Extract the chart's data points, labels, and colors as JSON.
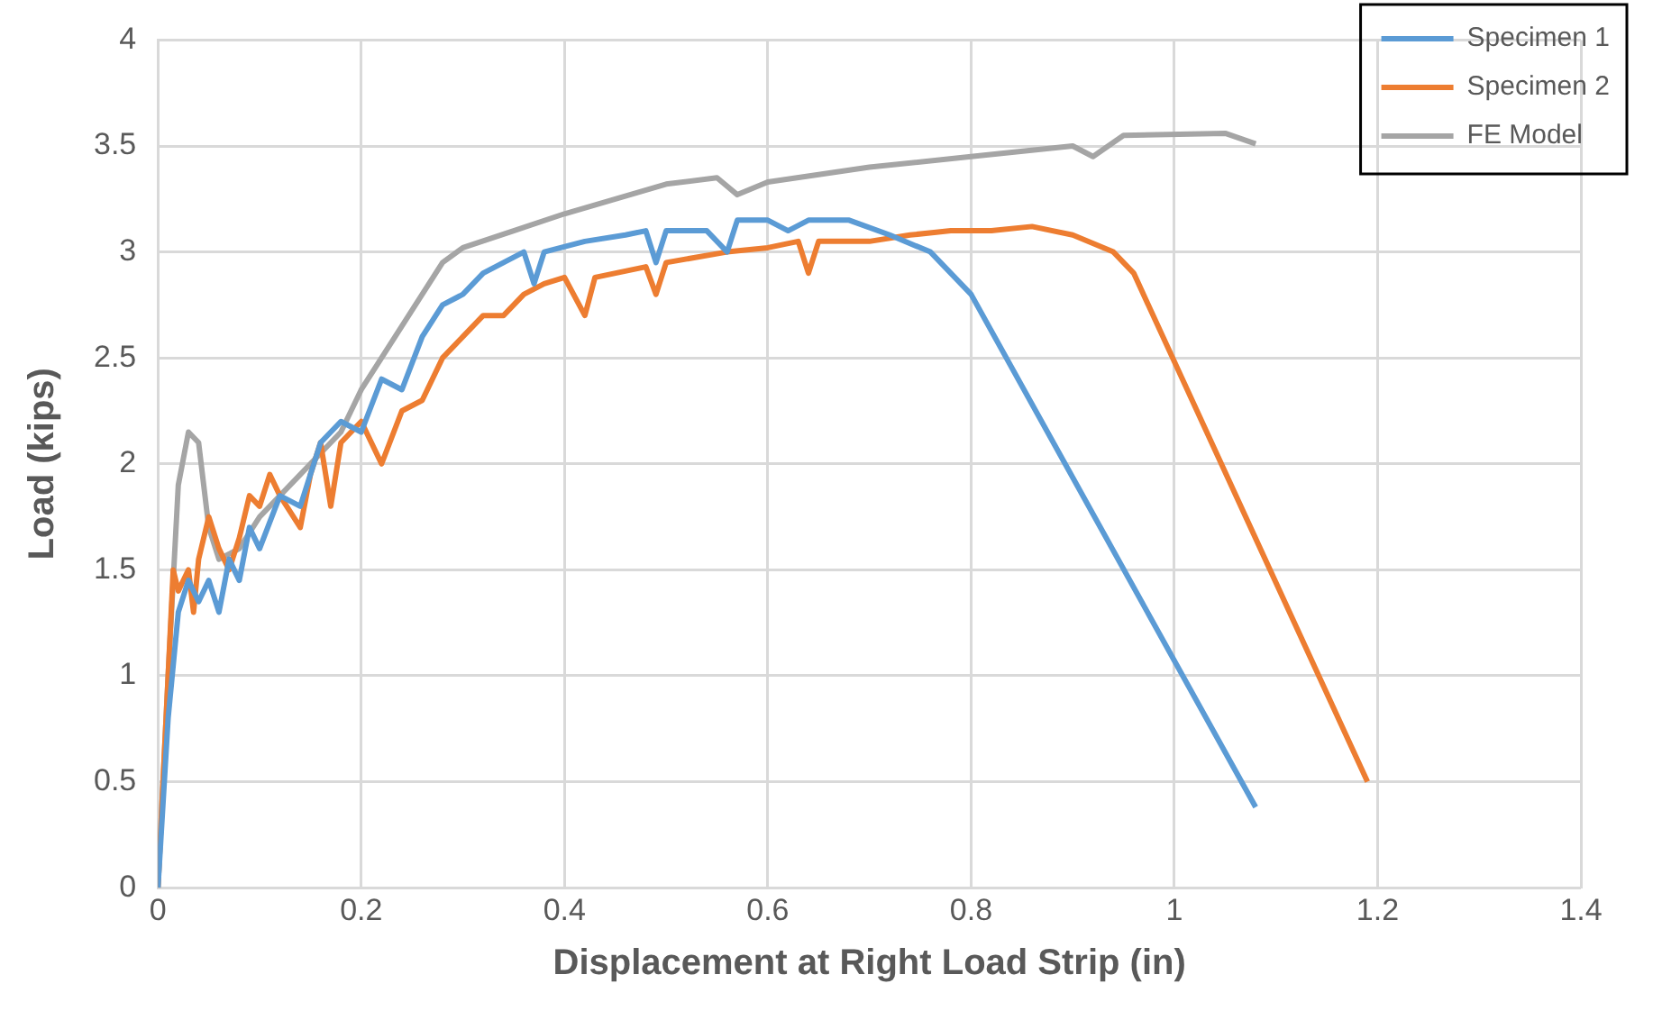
{
  "chart_data": {
    "type": "line",
    "xlabel": "Displacement at Right Load Strip (in)",
    "ylabel": "Load (kips)",
    "xlim": [
      0,
      1.4
    ],
    "xticks": [
      0,
      0.2,
      0.4,
      0.6,
      0.8,
      1,
      1.2,
      1.4
    ],
    "ylim": [
      0,
      4
    ],
    "yticks": [
      0,
      0.5,
      1,
      1.5,
      2,
      2.5,
      3,
      3.5,
      4
    ],
    "grid": true,
    "legend": "top right",
    "marker": "none",
    "line_style": "solid",
    "series": [
      {
        "name": "Specimen 1",
        "color": "#5b9bd5",
        "x": [
          0,
          0.01,
          0.02,
          0.03,
          0.04,
          0.05,
          0.06,
          0.07,
          0.08,
          0.09,
          0.1,
          0.12,
          0.14,
          0.16,
          0.18,
          0.2,
          0.22,
          0.24,
          0.26,
          0.28,
          0.3,
          0.32,
          0.34,
          0.36,
          0.37,
          0.38,
          0.42,
          0.46,
          0.48,
          0.49,
          0.5,
          0.54,
          0.56,
          0.57,
          0.6,
          0.62,
          0.64,
          0.68,
          0.72,
          0.76,
          0.78,
          0.8,
          1.08
        ],
        "values": [
          0,
          0.8,
          1.3,
          1.45,
          1.35,
          1.45,
          1.3,
          1.55,
          1.45,
          1.7,
          1.6,
          1.85,
          1.8,
          2.1,
          2.2,
          2.15,
          2.4,
          2.35,
          2.6,
          2.75,
          2.8,
          2.9,
          2.95,
          3,
          2.85,
          3,
          3.05,
          3.08,
          3.1,
          2.95,
          3.1,
          3.1,
          3,
          3.15,
          3.15,
          3.1,
          3.15,
          3.15,
          3.08,
          3,
          2.9,
          2.8,
          0.38
        ]
      },
      {
        "name": "Specimen 2",
        "color": "#ed7d31",
        "x": [
          0,
          0.01,
          0.015,
          0.02,
          0.03,
          0.035,
          0.04,
          0.05,
          0.06,
          0.07,
          0.08,
          0.09,
          0.1,
          0.11,
          0.12,
          0.14,
          0.15,
          0.16,
          0.17,
          0.18,
          0.2,
          0.22,
          0.24,
          0.26,
          0.28,
          0.3,
          0.32,
          0.34,
          0.36,
          0.38,
          0.4,
          0.42,
          0.43,
          0.48,
          0.49,
          0.5,
          0.56,
          0.6,
          0.63,
          0.64,
          0.65,
          0.7,
          0.74,
          0.78,
          0.82,
          0.86,
          0.9,
          0.94,
          0.96,
          1.19
        ],
        "values": [
          0,
          1,
          1.5,
          1.4,
          1.5,
          1.3,
          1.55,
          1.75,
          1.6,
          1.5,
          1.65,
          1.85,
          1.8,
          1.95,
          1.85,
          1.7,
          1.95,
          2.1,
          1.8,
          2.1,
          2.2,
          2,
          2.25,
          2.3,
          2.5,
          2.6,
          2.7,
          2.7,
          2.8,
          2.85,
          2.88,
          2.7,
          2.88,
          2.93,
          2.8,
          2.95,
          3,
          3.02,
          3.05,
          2.9,
          3.05,
          3.05,
          3.08,
          3.1,
          3.1,
          3.12,
          3.08,
          3,
          2.9,
          0.5
        ]
      },
      {
        "name": "FE Model",
        "color": "#a5a5a5",
        "x": [
          0,
          0.01,
          0.02,
          0.03,
          0.04,
          0.05,
          0.06,
          0.08,
          0.1,
          0.12,
          0.14,
          0.16,
          0.18,
          0.2,
          0.22,
          0.24,
          0.26,
          0.28,
          0.3,
          0.35,
          0.4,
          0.45,
          0.5,
          0.55,
          0.57,
          0.6,
          0.7,
          0.8,
          0.9,
          0.92,
          0.95,
          1.05,
          1.08
        ],
        "values": [
          0,
          1,
          1.9,
          2.15,
          2.1,
          1.7,
          1.55,
          1.6,
          1.75,
          1.85,
          1.95,
          2.05,
          2.15,
          2.35,
          2.5,
          2.65,
          2.8,
          2.95,
          3.02,
          3.1,
          3.18,
          3.25,
          3.32,
          3.35,
          3.27,
          3.33,
          3.4,
          3.45,
          3.5,
          3.45,
          3.55,
          3.56,
          3.51
        ]
      }
    ]
  }
}
